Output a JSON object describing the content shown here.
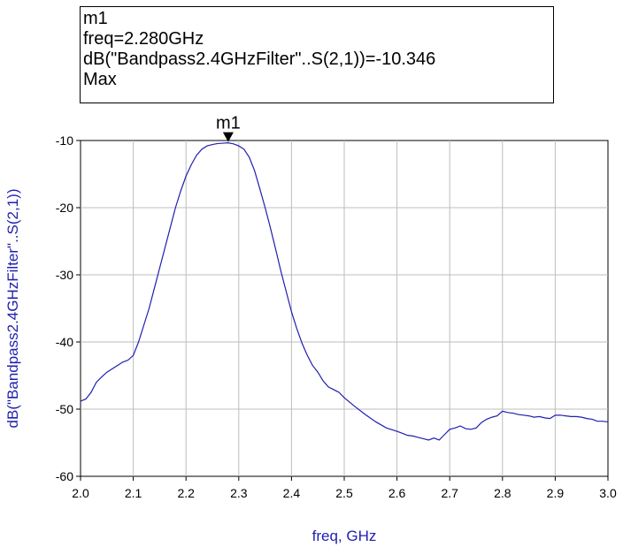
{
  "marker_box": {
    "name": "m1",
    "freq": "freq=2.280GHz",
    "value": "dB(\"Bandpass2.4GHzFilter\"..S(2,1))=-10.346",
    "mode": "Max"
  },
  "chart_data": {
    "type": "line",
    "title": "",
    "xlabel": "freq, GHz",
    "ylabel": "dB(\"Bandpass2.4GHzFilter\"..S(2,1))",
    "xlim": [
      2.0,
      3.0
    ],
    "ylim": [
      -60,
      -10
    ],
    "xticks": [
      "2.0",
      "2.1",
      "2.2",
      "2.3",
      "2.4",
      "2.5",
      "2.6",
      "2.7",
      "2.8",
      "2.9",
      "3.0"
    ],
    "yticks": [
      "-10",
      "-20",
      "-30",
      "-40",
      "-50",
      "-60"
    ],
    "grid": true,
    "line_color": "#1f1fb0",
    "marker": {
      "label": "m1",
      "x": 2.28,
      "y": -10.346
    },
    "series": [
      {
        "x": [
          2.0,
          2.01,
          2.02,
          2.03,
          2.04,
          2.05,
          2.06,
          2.07,
          2.08,
          2.09,
          2.1,
          2.11,
          2.12,
          2.13,
          2.14,
          2.15,
          2.16,
          2.17,
          2.18,
          2.19,
          2.2,
          2.21,
          2.22,
          2.23,
          2.24,
          2.25,
          2.26,
          2.27,
          2.28,
          2.29,
          2.3,
          2.31,
          2.32,
          2.33,
          2.34,
          2.35,
          2.36,
          2.37,
          2.38,
          2.39,
          2.4,
          2.41,
          2.42,
          2.43,
          2.44,
          2.45,
          2.46,
          2.47,
          2.48,
          2.49,
          2.5,
          2.52,
          2.54,
          2.56,
          2.58,
          2.6,
          2.61,
          2.62,
          2.63,
          2.64,
          2.65,
          2.66,
          2.67,
          2.68,
          2.69,
          2.7,
          2.71,
          2.72,
          2.73,
          2.74,
          2.75,
          2.76,
          2.77,
          2.78,
          2.79,
          2.8,
          2.81,
          2.82,
          2.83,
          2.84,
          2.85,
          2.86,
          2.87,
          2.88,
          2.89,
          2.9,
          2.91,
          2.92,
          2.93,
          2.94,
          2.95,
          2.96,
          2.97,
          2.98,
          2.99,
          3.0
        ],
        "y": [
          -48.8,
          -48.5,
          -47.5,
          -46.0,
          -45.2,
          -44.5,
          -44.0,
          -43.5,
          -43.0,
          -42.7,
          -42.0,
          -40.0,
          -37.5,
          -35.0,
          -32.0,
          -29.0,
          -26.0,
          -23.0,
          -20.0,
          -17.5,
          -15.3,
          -13.6,
          -12.2,
          -11.3,
          -10.8,
          -10.6,
          -10.45,
          -10.4,
          -10.346,
          -10.5,
          -10.8,
          -11.3,
          -12.5,
          -14.5,
          -17.2,
          -20.0,
          -23.0,
          -26.2,
          -29.5,
          -32.5,
          -35.5,
          -38.0,
          -40.2,
          -42.0,
          -43.5,
          -44.5,
          -45.8,
          -46.7,
          -47.1,
          -47.5,
          -48.3,
          -49.6,
          -50.8,
          -51.9,
          -52.8,
          -53.3,
          -53.6,
          -53.9,
          -54.0,
          -54.2,
          -54.4,
          -54.6,
          -54.3,
          -54.6,
          -53.8,
          -53.0,
          -52.8,
          -52.5,
          -52.9,
          -53.0,
          -52.8,
          -52.0,
          -51.5,
          -51.2,
          -51.0,
          -50.3,
          -50.5,
          -50.6,
          -50.8,
          -50.9,
          -51.0,
          -51.2,
          -51.1,
          -51.3,
          -51.4,
          -50.9,
          -50.9,
          -51.0,
          -51.1,
          -51.1,
          -51.2,
          -51.4,
          -51.5,
          -51.8,
          -51.8,
          -51.9
        ]
      }
    ]
  }
}
